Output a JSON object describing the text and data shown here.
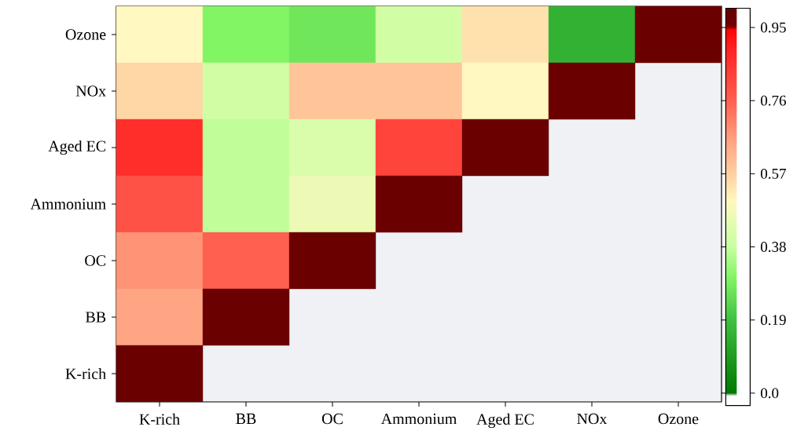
{
  "chart_data": {
    "type": "heatmap",
    "categories": [
      "K-rich",
      "BB",
      "OC",
      "Ammonium",
      "Aged EC",
      "NOx",
      "Ozone"
    ],
    "y_categories": [
      "Ozone",
      "NOx",
      "Aged EC",
      "Ammonium",
      "OC",
      "BB",
      "K-rich"
    ],
    "cells": [
      [
        0.5,
        0.3,
        0.27,
        0.4,
        0.54,
        0.15,
        1.0
      ],
      [
        0.56,
        0.4,
        0.59,
        0.59,
        0.5,
        1.0,
        null
      ],
      [
        0.87,
        0.37,
        0.42,
        0.82,
        1.0,
        null,
        null
      ],
      [
        0.79,
        0.37,
        0.46,
        1.0,
        null,
        null,
        null
      ],
      [
        0.68,
        0.76,
        1.0,
        null,
        null,
        null,
        null
      ],
      [
        0.65,
        1.0,
        null,
        null,
        null,
        null,
        null
      ],
      [
        1.0,
        null,
        null,
        null,
        null,
        null,
        null
      ]
    ],
    "clim": [
      -0.032,
      1.0
    ],
    "cticks": [
      {
        "value": 0,
        "label": "0.0"
      },
      0.19,
      0.38,
      0.57,
      0.76,
      0.95
    ]
  }
}
